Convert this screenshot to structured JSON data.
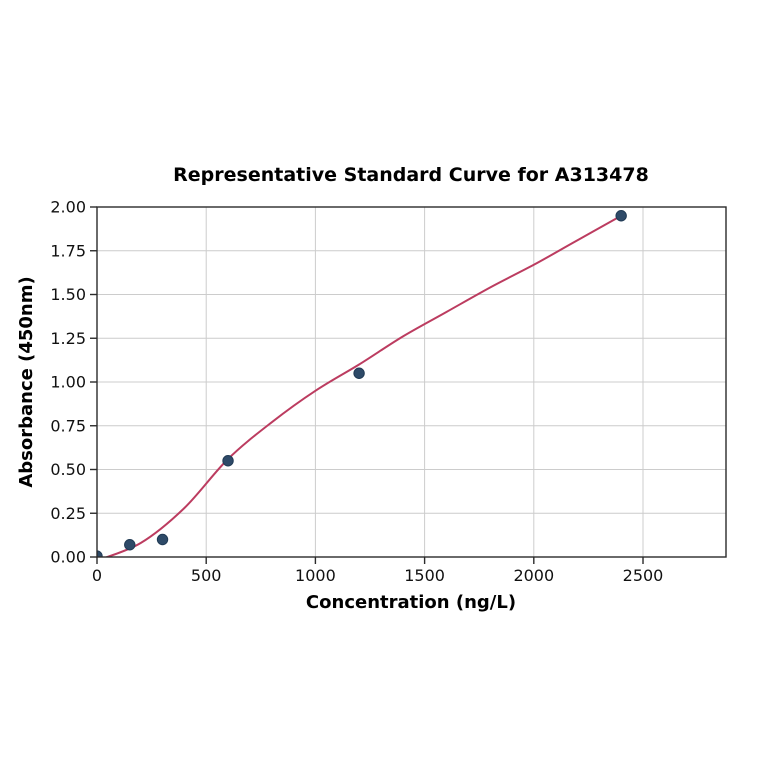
{
  "chart_data": {
    "type": "scatter",
    "title": "Representative Standard Curve for A313478",
    "xlabel": "Concentration (ng/L)",
    "ylabel": "Absorbance (450nm)",
    "xlim": [
      0,
      2880
    ],
    "ylim": [
      0,
      2.0
    ],
    "grid": true,
    "legend_position": "none",
    "x_ticks": [
      {
        "value": 0,
        "label": "0"
      },
      {
        "value": 500,
        "label": "500"
      },
      {
        "value": 1000,
        "label": "1000"
      },
      {
        "value": 1500,
        "label": "1500"
      },
      {
        "value": 2000,
        "label": "2000"
      },
      {
        "value": 2500,
        "label": "2500"
      }
    ],
    "y_ticks": [
      {
        "value": 0.0,
        "label": "0.00"
      },
      {
        "value": 0.25,
        "label": "0.25"
      },
      {
        "value": 0.5,
        "label": "0.50"
      },
      {
        "value": 0.75,
        "label": "0.75"
      },
      {
        "value": 1.0,
        "label": "1.00"
      },
      {
        "value": 1.25,
        "label": "1.25"
      },
      {
        "value": 1.5,
        "label": "1.50"
      },
      {
        "value": 1.75,
        "label": "1.75"
      },
      {
        "value": 2.0,
        "label": "2.00"
      }
    ],
    "series": [
      {
        "name": "fitted-curve",
        "kind": "line",
        "color": "#bc3c60",
        "width": 2,
        "points": [
          {
            "x": 0,
            "y": -0.02
          },
          {
            "x": 200,
            "y": 0.08
          },
          {
            "x": 400,
            "y": 0.28
          },
          {
            "x": 600,
            "y": 0.56
          },
          {
            "x": 800,
            "y": 0.77
          },
          {
            "x": 1000,
            "y": 0.95
          },
          {
            "x": 1200,
            "y": 1.1
          },
          {
            "x": 1400,
            "y": 1.26
          },
          {
            "x": 1600,
            "y": 1.4
          },
          {
            "x": 1800,
            "y": 1.54
          },
          {
            "x": 2000,
            "y": 1.67
          },
          {
            "x": 2200,
            "y": 1.81
          },
          {
            "x": 2400,
            "y": 1.95
          }
        ]
      },
      {
        "name": "standard-points",
        "kind": "scatter",
        "color": "#2e4a68",
        "edge_color": "#203a54",
        "marker_radius": 5.2,
        "points": [
          {
            "x": 0,
            "y": 0.005
          },
          {
            "x": 150,
            "y": 0.07
          },
          {
            "x": 300,
            "y": 0.1
          },
          {
            "x": 600,
            "y": 0.55
          },
          {
            "x": 1200,
            "y": 1.05
          },
          {
            "x": 2400,
            "y": 1.95
          }
        ]
      }
    ],
    "colors": {
      "background": "#ffffff",
      "grid": "#cccccc",
      "frame": "#2b2b2b",
      "tick": "#2b2b2b",
      "text": "#000000"
    }
  }
}
